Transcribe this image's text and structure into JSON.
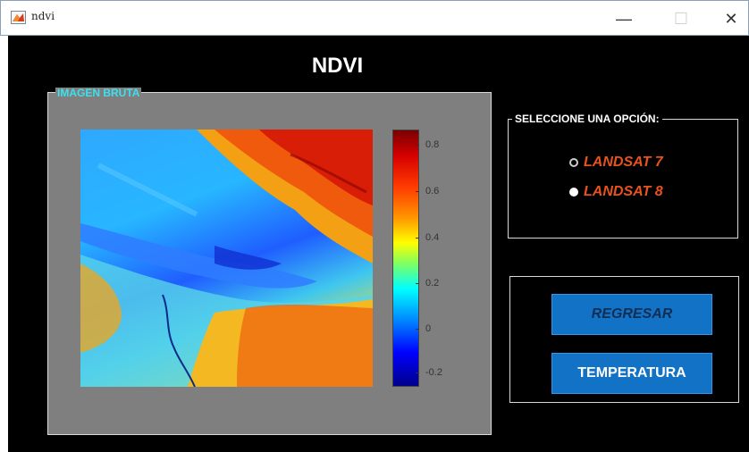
{
  "window": {
    "title": "ndvi",
    "minimize_glyph": "—",
    "maximize_glyph": "☐",
    "close_glyph": "✕"
  },
  "app": {
    "title": "NDVI"
  },
  "image_panel": {
    "label": "IMAGEN BRUTA",
    "colorbar": {
      "ticks": [
        "0.8",
        "0.6",
        "0.4",
        "0.2",
        "0",
        "-0.2"
      ],
      "colormap": "jet"
    }
  },
  "options_panel": {
    "label": "SELECCIONE UNA OPCIÓN:",
    "options": [
      {
        "label": "LANDSAT 7",
        "selected": false
      },
      {
        "label": "LANDSAT 8",
        "selected": true
      }
    ]
  },
  "buttons": {
    "regresar": "REGRESAR",
    "temperatura": "TEMPERATURA"
  },
  "colors": {
    "background": "#000000",
    "panel_gray": "#7f7f7f",
    "legend_cyan": "#3ee0ee",
    "option_text": "#e8521c",
    "button_blue": "#1273c6"
  }
}
